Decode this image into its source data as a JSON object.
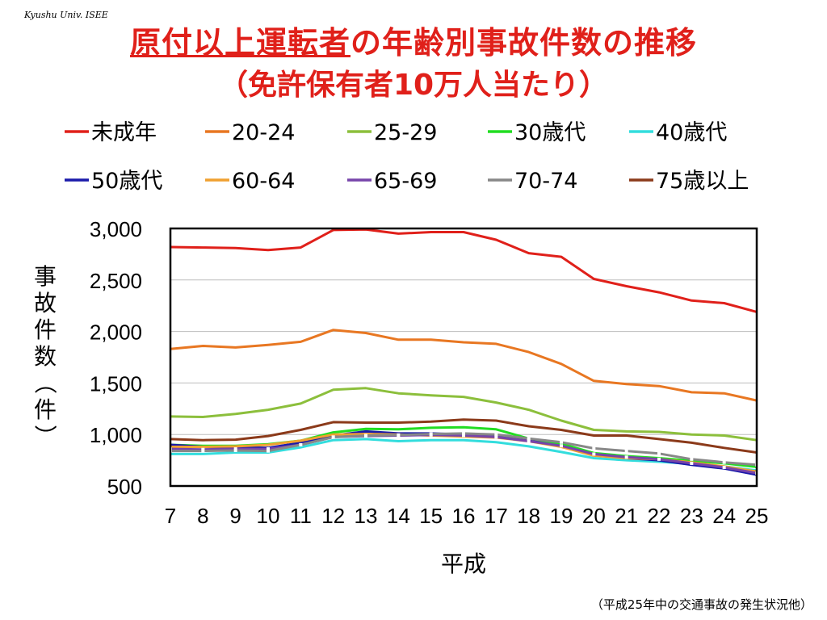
{
  "header": {
    "watermark": "Kyushu Univ. ISEE",
    "title_part1": "原付以上運転者",
    "title_part2": "の年齢別事故件数の推移",
    "subtitle": "（免許保有者10万人当たり）"
  },
  "footer": {
    "source": "（平成25年中の交通事故の発生状況他）"
  },
  "colors": {
    "title": "#e0201a"
  },
  "chart_data": {
    "type": "line",
    "xlabel": "平成",
    "ylabel": "事故件数（件）",
    "ylim": [
      500,
      3000
    ],
    "yticks": [
      500,
      1000,
      1500,
      2000,
      2500,
      3000
    ],
    "ytick_labels": [
      "500",
      "1,000",
      "1,500",
      "2,000",
      "2,500",
      "3,000"
    ],
    "x": [
      7,
      8,
      9,
      10,
      11,
      12,
      13,
      14,
      15,
      16,
      17,
      18,
      19,
      20,
      21,
      22,
      23,
      24,
      25
    ],
    "x_labels": [
      "7",
      "8",
      "9",
      "10",
      "11",
      "12",
      "13",
      "14",
      "15",
      "16",
      "17",
      "18",
      "19",
      "20",
      "21",
      "22",
      "23",
      "24",
      "25"
    ],
    "grid": "horizontal",
    "legend_position": "top",
    "series": [
      {
        "name": "未成年",
        "color": "#e0201a",
        "values": [
          2820,
          2815,
          2810,
          2790,
          2815,
          2985,
          2990,
          2950,
          2965,
          2965,
          2890,
          2760,
          2725,
          2510,
          2440,
          2380,
          2300,
          2275,
          2190
        ]
      },
      {
        "name": "20-24",
        "color": "#e87722",
        "values": [
          1830,
          1860,
          1845,
          1870,
          1900,
          2015,
          1985,
          1920,
          1920,
          1895,
          1880,
          1800,
          1685,
          1520,
          1490,
          1470,
          1410,
          1400,
          1330
        ]
      },
      {
        "name": "25-29",
        "color": "#8cbf3c",
        "values": [
          1175,
          1170,
          1200,
          1240,
          1300,
          1435,
          1450,
          1400,
          1380,
          1365,
          1310,
          1240,
          1135,
          1045,
          1030,
          1025,
          1000,
          990,
          945
        ]
      },
      {
        "name": "30歳代",
        "color": "#22dd22",
        "values": [
          900,
          890,
          890,
          905,
          940,
          1020,
          1055,
          1050,
          1065,
          1070,
          1050,
          960,
          910,
          820,
          790,
          770,
          745,
          720,
          685
        ]
      },
      {
        "name": "40歳代",
        "color": "#33dddd",
        "values": [
          810,
          810,
          825,
          825,
          875,
          945,
          955,
          935,
          945,
          945,
          925,
          885,
          830,
          770,
          750,
          735,
          715,
          690,
          650
        ]
      },
      {
        "name": "50歳代",
        "color": "#1a1aaa",
        "values": [
          900,
          880,
          875,
          870,
          920,
          990,
          1030,
          1010,
          1010,
          1000,
          985,
          940,
          885,
          800,
          770,
          750,
          705,
          670,
          610
        ]
      },
      {
        "name": "60-64",
        "color": "#f0a030",
        "values": [
          880,
          880,
          885,
          900,
          940,
          1000,
          1005,
          1000,
          990,
          980,
          970,
          935,
          880,
          795,
          770,
          760,
          730,
          690,
          640
        ]
      },
      {
        "name": "65-69",
        "color": "#7744aa",
        "values": [
          860,
          855,
          860,
          860,
          900,
          975,
          985,
          990,
          995,
          990,
          975,
          935,
          890,
          810,
          780,
          760,
          720,
          680,
          625
        ]
      },
      {
        "name": "70-74",
        "color": "#888888",
        "values": [
          840,
          840,
          845,
          840,
          900,
          975,
          990,
          995,
          1005,
          1010,
          1000,
          960,
          925,
          865,
          840,
          815,
          760,
          730,
          705
        ]
      },
      {
        "name": "75歳以上",
        "color": "#8b3a1a",
        "values": [
          955,
          945,
          950,
          985,
          1045,
          1120,
          1115,
          1115,
          1125,
          1145,
          1135,
          1080,
          1045,
          990,
          990,
          955,
          920,
          870,
          825
        ]
      }
    ]
  }
}
